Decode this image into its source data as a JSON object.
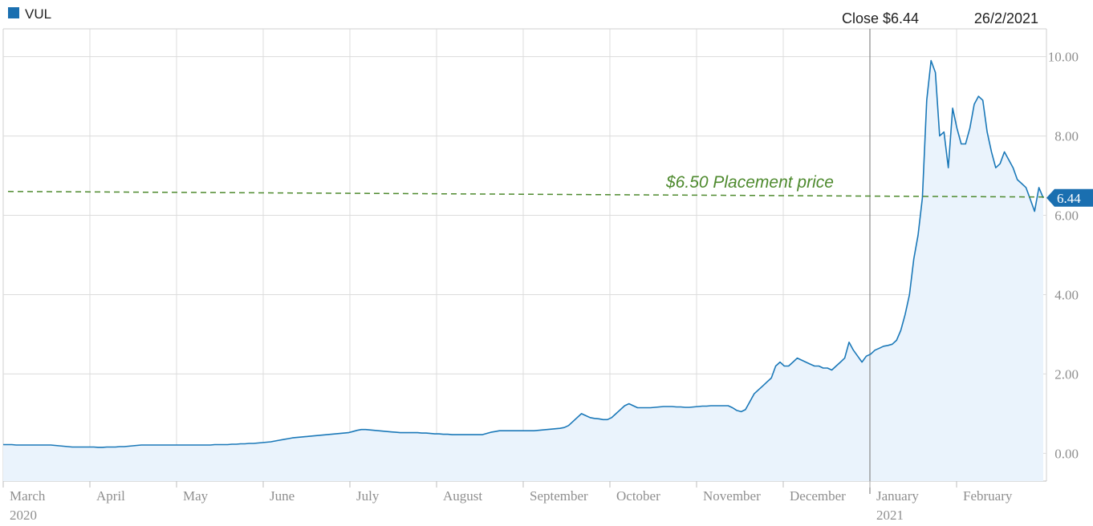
{
  "legend": {
    "symbol": "VUL",
    "swatch_color": "#1a6fb0"
  },
  "header": {
    "close_label": "Close $6.44",
    "date": "26/2/2021"
  },
  "colors": {
    "line": "#1a78b8",
    "area": "#eaf3fc",
    "grid": "#dcdcdc",
    "annotation": "#4e8a2e",
    "cursor": "#8a8a8a",
    "badge": "#1a6fb0"
  },
  "chart_data": {
    "type": "area",
    "series": [
      {
        "name": "VUL",
        "values": [
          0.22,
          0.22,
          0.22,
          0.21,
          0.21,
          0.21,
          0.21,
          0.21,
          0.21,
          0.21,
          0.21,
          0.21,
          0.2,
          0.19,
          0.18,
          0.17,
          0.16,
          0.16,
          0.16,
          0.16,
          0.16,
          0.16,
          0.15,
          0.15,
          0.16,
          0.16,
          0.16,
          0.17,
          0.17,
          0.18,
          0.19,
          0.2,
          0.21,
          0.21,
          0.21,
          0.21,
          0.21,
          0.21,
          0.21,
          0.21,
          0.21,
          0.21,
          0.21,
          0.21,
          0.21,
          0.21,
          0.21,
          0.21,
          0.21,
          0.22,
          0.22,
          0.22,
          0.22,
          0.23,
          0.23,
          0.24,
          0.24,
          0.25,
          0.25,
          0.26,
          0.27,
          0.28,
          0.29,
          0.31,
          0.33,
          0.35,
          0.37,
          0.39,
          0.4,
          0.41,
          0.42,
          0.43,
          0.44,
          0.45,
          0.46,
          0.47,
          0.48,
          0.49,
          0.5,
          0.51,
          0.52,
          0.55,
          0.58,
          0.6,
          0.6,
          0.59,
          0.58,
          0.57,
          0.56,
          0.55,
          0.54,
          0.53,
          0.52,
          0.52,
          0.52,
          0.52,
          0.52,
          0.51,
          0.51,
          0.5,
          0.49,
          0.49,
          0.48,
          0.48,
          0.47,
          0.47,
          0.47,
          0.47,
          0.47,
          0.47,
          0.47,
          0.47,
          0.5,
          0.53,
          0.55,
          0.57,
          0.57,
          0.57,
          0.57,
          0.57,
          0.57,
          0.57,
          0.57,
          0.57,
          0.58,
          0.59,
          0.6,
          0.61,
          0.62,
          0.63,
          0.65,
          0.7,
          0.8,
          0.9,
          1.0,
          0.95,
          0.9,
          0.88,
          0.87,
          0.85,
          0.85,
          0.9,
          1.0,
          1.1,
          1.2,
          1.25,
          1.2,
          1.15,
          1.15,
          1.15,
          1.15,
          1.16,
          1.17,
          1.18,
          1.18,
          1.18,
          1.17,
          1.17,
          1.16,
          1.16,
          1.17,
          1.18,
          1.19,
          1.19,
          1.2,
          1.2,
          1.2,
          1.2,
          1.2,
          1.15,
          1.08,
          1.05,
          1.1,
          1.3,
          1.5,
          1.6,
          1.7,
          1.8,
          1.9,
          2.2,
          2.3,
          2.2,
          2.2,
          2.3,
          2.4,
          2.35,
          2.3,
          2.25,
          2.2,
          2.2,
          2.15,
          2.15,
          2.1,
          2.2,
          2.3,
          2.4,
          2.8,
          2.6,
          2.45,
          2.3,
          2.45,
          2.5,
          2.6,
          2.65,
          2.7,
          2.72,
          2.75,
          2.85,
          3.1,
          3.5,
          4.0,
          4.9,
          5.5,
          6.44,
          8.9,
          9.9,
          9.6,
          8.0,
          8.1,
          7.2,
          8.7,
          8.2,
          7.8,
          7.8,
          8.2,
          8.8,
          9.0,
          8.9,
          8.1,
          7.6,
          7.2,
          7.3,
          7.6,
          7.4,
          7.2,
          6.9,
          6.8,
          6.7,
          6.4,
          6.1,
          6.7,
          6.44
        ]
      }
    ],
    "x_labels": [
      {
        "label": "March",
        "year": "2020"
      },
      {
        "label": "April"
      },
      {
        "label": "May"
      },
      {
        "label": "June"
      },
      {
        "label": "July"
      },
      {
        "label": "August"
      },
      {
        "label": "September"
      },
      {
        "label": "October"
      },
      {
        "label": "November"
      },
      {
        "label": "December"
      },
      {
        "label": "January",
        "year": "2021"
      },
      {
        "label": "February"
      }
    ],
    "y_ticks": [
      "0.00",
      "2.00",
      "4.00",
      "6.00",
      "8.00",
      "10.00"
    ],
    "ylim": [
      -0.7,
      10.7
    ],
    "reference_line": {
      "value": 6.5,
      "label": "$6.50 Placement price"
    },
    "last_value_label": "6.44",
    "grid": true,
    "legend_position": "top-left"
  }
}
